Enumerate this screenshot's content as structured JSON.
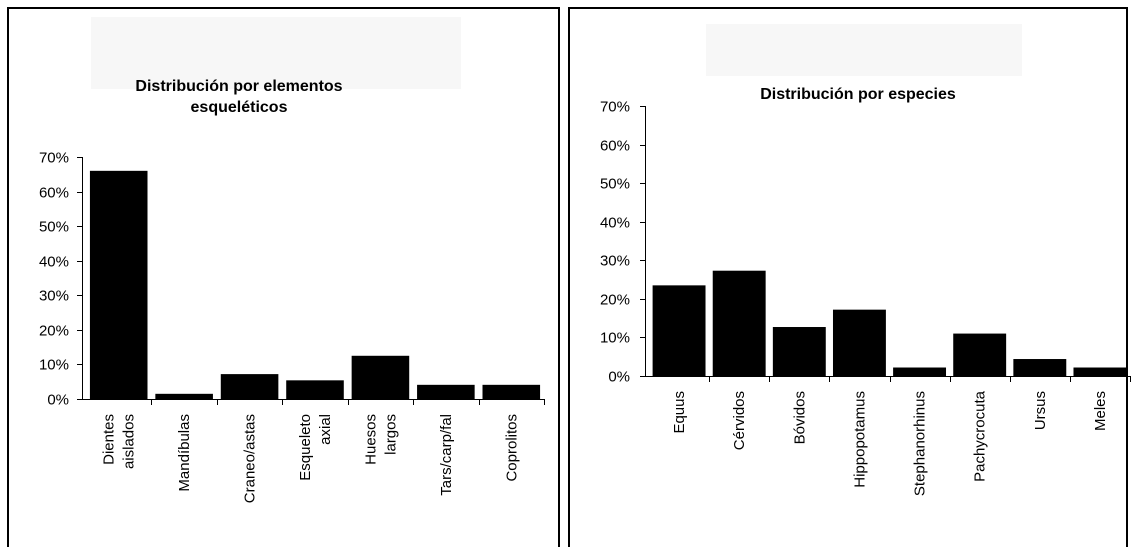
{
  "chart_data": [
    {
      "type": "bar",
      "title": "Distribución por elementos esqueléticos",
      "title_lines": [
        "Distribución por elementos",
        "esqueléticos"
      ],
      "categories": [
        "Dientes aislados",
        "Mandíbulas",
        "Craneo/astas",
        "Esqueleto axial",
        "Huesos largos",
        "Tars/carp/fal",
        "Coprolitos"
      ],
      "category_lines": [
        [
          "Dientes",
          "aislados"
        ],
        [
          "Mandíbulas"
        ],
        [
          "Craneo/astas"
        ],
        [
          "Esqueleto",
          "axial"
        ],
        [
          "Huesos",
          "largos"
        ],
        [
          "Tars/carp/fal"
        ],
        [
          "Coprolitos"
        ]
      ],
      "values": [
        0.66,
        0.015,
        0.072,
        0.054,
        0.125,
        0.041,
        0.041
      ],
      "ylim": [
        0,
        0.7
      ],
      "yticks": [
        "0%",
        "10%",
        "20%",
        "30%",
        "40%",
        "50%",
        "60%",
        "70%"
      ],
      "xlabel": "",
      "ylabel": "",
      "grid": false,
      "bar_color": "#000000"
    },
    {
      "type": "bar",
      "title": "Distribución por especies",
      "title_lines": [
        "Distribución por especies"
      ],
      "categories": [
        "Equus",
        "Cérvidos",
        "Bóvidos",
        "Hippopotamus",
        "Stephanorhinus",
        "Pachycrocuta",
        "Ursus",
        "Meles"
      ],
      "category_lines": [
        [
          "Equus"
        ],
        [
          "Cérvidos"
        ],
        [
          "Bóvidos"
        ],
        [
          "Hippopotamus"
        ],
        [
          "Stephanorhinus"
        ],
        [
          "Pachycrocuta"
        ],
        [
          "Ursus"
        ],
        [
          "Meles"
        ]
      ],
      "values": [
        0.235,
        0.273,
        0.127,
        0.172,
        0.022,
        0.11,
        0.044,
        0.022
      ],
      "ylim": [
        0,
        0.7
      ],
      "yticks": [
        "0%",
        "10%",
        "20%",
        "30%",
        "40%",
        "50%",
        "60%",
        "70%"
      ],
      "xlabel": "",
      "ylabel": "",
      "grid": false,
      "bar_color": "#000000"
    }
  ],
  "colors": {
    "bars": "#000000",
    "background": "#ffffff",
    "title_box": "#f7f7f7"
  }
}
